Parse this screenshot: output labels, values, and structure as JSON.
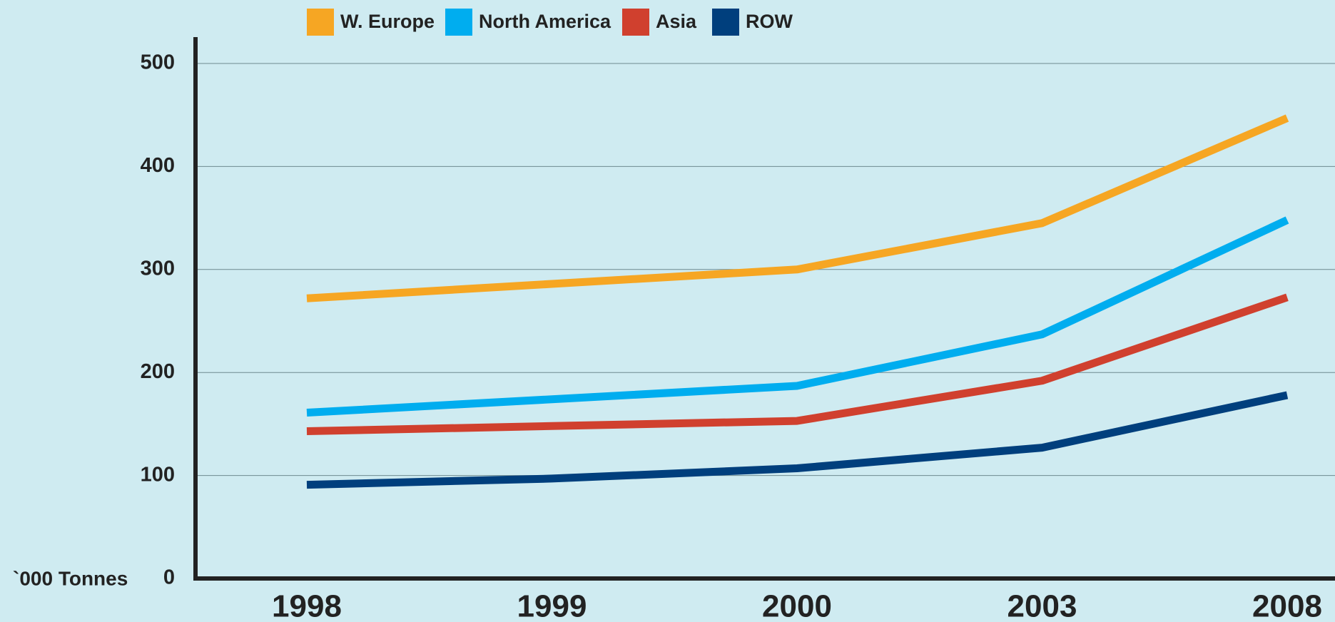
{
  "chart_data": {
    "type": "line",
    "y_axis_label": "`000 Tonnes",
    "categories": [
      "1998",
      "1999",
      "2000",
      "2003",
      "2008"
    ],
    "series": [
      {
        "name": "W. Europe",
        "color": "#f6a623",
        "values": [
          272,
          286,
          300,
          345,
          447
        ]
      },
      {
        "name": "North America",
        "color": "#00adef",
        "values": [
          161,
          174,
          187,
          237,
          348
        ]
      },
      {
        "name": "Asia",
        "color": "#d0402e",
        "values": [
          143,
          148,
          153,
          192,
          273
        ]
      },
      {
        "name": "ROW",
        "color": "#003f7d",
        "values": [
          91,
          97,
          107,
          127,
          178
        ]
      }
    ],
    "ylim": [
      0,
      500
    ],
    "yticks": [
      0,
      100,
      200,
      300,
      400,
      500
    ],
    "grid": true,
    "legend": "top"
  }
}
